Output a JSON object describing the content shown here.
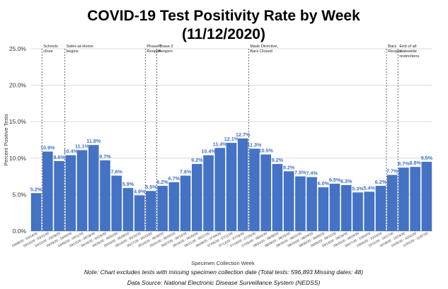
{
  "chart_data": {
    "type": "bar",
    "title_line1": "COVID-19 Test Positivity Rate by Week",
    "title_line2": "(11/12/2020)",
    "xlabel": "Specimen Collection Week",
    "ylabel": "Percent Positive Tests",
    "ylim": [
      0,
      25
    ],
    "yticks": [
      "0.0%",
      "5.0%",
      "10.0%",
      "15.0%",
      "20.0%",
      "25.0%"
    ],
    "ytick_values": [
      0,
      5,
      10,
      15,
      20,
      25
    ],
    "grid": true,
    "bar_color": "#4472c4",
    "label_color": "#4472c4",
    "categories": [
      "03/08/20 - 03/14/20",
      "03/15/20 - 03/21/20",
      "03/22/20 - 03/28/20",
      "03/29/20 - 04/04/20",
      "04/05/20 - 04/11/20",
      "04/12/20 - 04/18/20",
      "04/19/20 - 04/25/20",
      "04/26/20 - 05/02/20",
      "05/03/20 - 05/09/20",
      "05/10/20 - 05/16/20",
      "05/17/20 - 05/23/20",
      "05/24/20 - 05/30/20",
      "05/31/20 - 06/06/20",
      "06/07/20 - 06/13/20",
      "06/14/20 - 06/20/20",
      "06/21/20 - 06/27/20",
      "06/28/20 - 07/04/20",
      "07/05/20 - 07/11/20",
      "07/12/20 - 07/18/20",
      "07/19/20 - 07/25/20",
      "07/26/20 - 08/01/20",
      "08/02/20 - 08/08/20",
      "08/09/20 - 08/15/20",
      "08/16/20 - 08/22/20",
      "08/23/20 - 08/29/20",
      "08/30/20 - 09/05/20",
      "09/06/20 - 09/12/20",
      "09/13/20 - 09/19/20",
      "09/20/20 - 09/26/20",
      "09/27/20 - 10/03/20",
      "10/04/20 - 10/10/20",
      "10/11/20 - 10/17/20",
      "10/18/20 - 10/24/20",
      "10/25/20 - 10/31/20",
      "11/01/20 - 11/07/20"
    ],
    "values": [
      5.2,
      10.9,
      9.6,
      10.4,
      11.1,
      11.8,
      9.7,
      7.6,
      5.9,
      4.9,
      5.5,
      6.2,
      6.7,
      7.6,
      9.2,
      10.4,
      11.4,
      12.1,
      12.7,
      11.3,
      10.5,
      9.2,
      8.2,
      7.5,
      7.4,
      6.0,
      6.5,
      6.3,
      5.3,
      5.4,
      6.2,
      7.7,
      8.7,
      8.8,
      9.5
    ],
    "value_labels": [
      "5.2%",
      "10.9%",
      "9.6%",
      "10.4%",
      "11.1%",
      "11.8%",
      "9.7%",
      "7.6%",
      "5.9%",
      "4.9%",
      "5.5%",
      "6.2%",
      "6.7%",
      "7.6%",
      "9.2%",
      "10.4%",
      "11.4%",
      "12.1%",
      "12.7%",
      "11.3%",
      "10.5%",
      "9.2%",
      "8.2%",
      "7.5%",
      "7.4%",
      "6.0%",
      "6.5%",
      "6.3%",
      "5.3%",
      "5.4%",
      "6.2%",
      "7.7%",
      "8.7%",
      "8.8%",
      "9.5%"
    ],
    "annotations": [
      {
        "after_index": 0,
        "lines": [
          "Schools",
          "close"
        ]
      },
      {
        "after_index": 2,
        "lines": [
          "Safer-at-Home",
          "begins"
        ]
      },
      {
        "after_index": 9,
        "lines": [
          "Phase 1",
          "Reopen"
        ]
      },
      {
        "after_index": 10,
        "lines": [
          "Phase 2",
          "Reopen"
        ]
      },
      {
        "after_index": 18,
        "lines": [
          "Mask Directive,",
          "Bars Closed"
        ]
      },
      {
        "after_index": 30,
        "lines": [
          "Bars",
          "Reopen"
        ]
      },
      {
        "after_index": 31,
        "lines": [
          "End of all",
          "statewide",
          "restrictions"
        ]
      }
    ],
    "notes": [
      "Note: Chart  excludes tests with missing specimen collection date (Total tests: 596,893   Missing dates: 48)",
      "Data Source: National Electronic Disease Surveillance System (NEDSS)"
    ]
  }
}
